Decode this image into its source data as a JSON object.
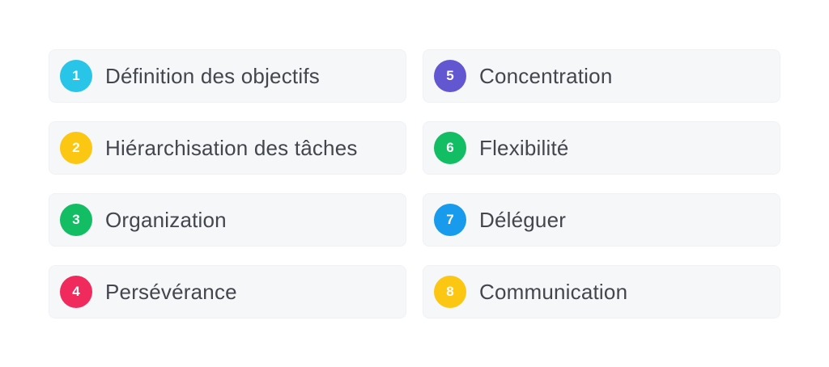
{
  "list": {
    "items": [
      {
        "number": "1",
        "label": "Définition des objectifs",
        "color": "#29c5e9"
      },
      {
        "number": "2",
        "label": "Hiérarchisation des tâches",
        "color": "#fbc712"
      },
      {
        "number": "3",
        "label": "Organization",
        "color": "#12bd63"
      },
      {
        "number": "4",
        "label": "Persévérance",
        "color": "#f02a5c"
      },
      {
        "number": "5",
        "label": "Concentration",
        "color": "#6257d0"
      },
      {
        "number": "6",
        "label": "Flexibilité",
        "color": "#12bd63"
      },
      {
        "number": "7",
        "label": "Déléguer",
        "color": "#189bed"
      },
      {
        "number": "8",
        "label": "Communication",
        "color": "#fbc712"
      }
    ]
  }
}
